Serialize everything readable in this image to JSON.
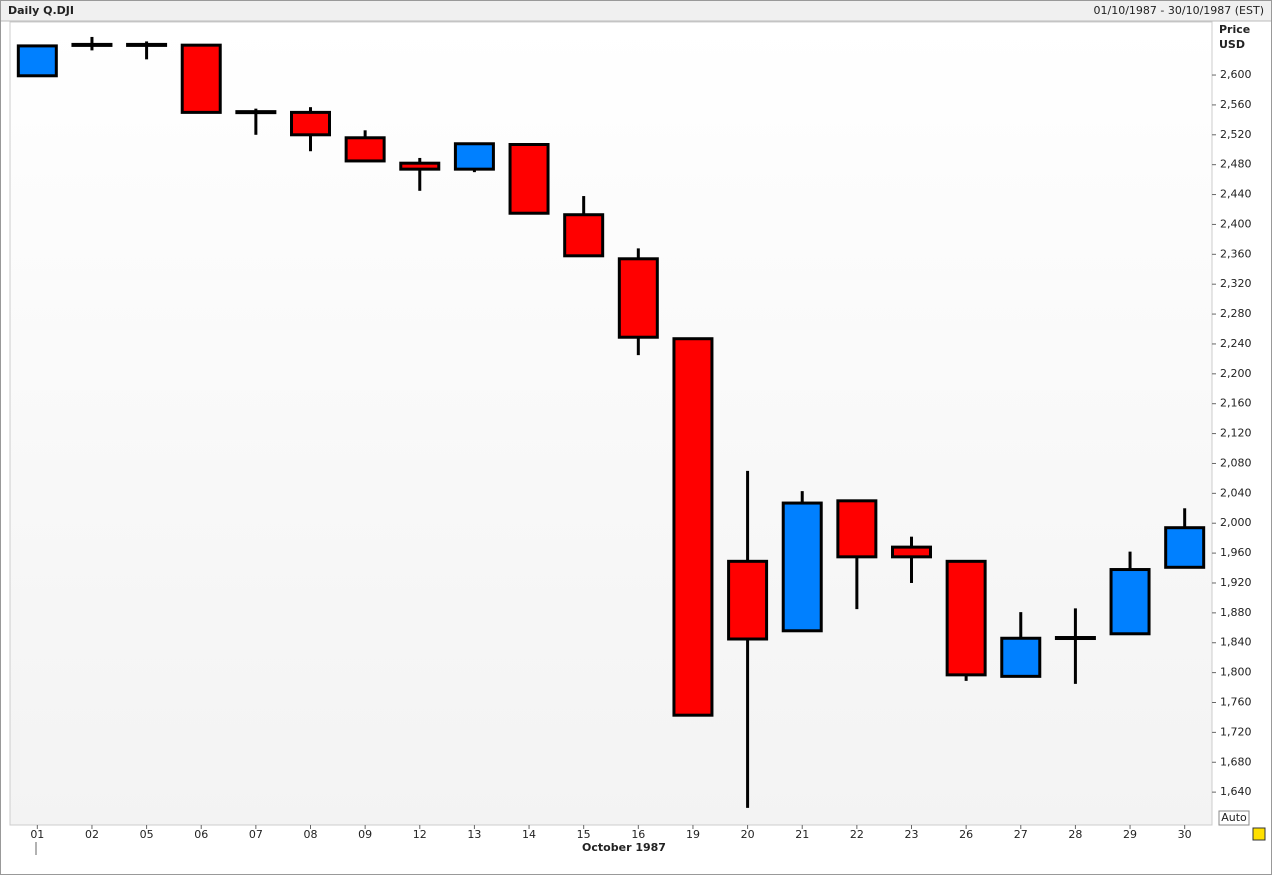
{
  "chart_data": {
    "type": "candlestick",
    "title": "Daily Q.DJI",
    "date_range": "01/10/1987 - 30/10/1987 (EST)",
    "y_axis_title": "Price",
    "y_axis_unit": "USD",
    "x_axis_label": "October 1987",
    "scale_mode": "Auto",
    "categories": [
      "01",
      "02",
      "05",
      "06",
      "07",
      "08",
      "09",
      "12",
      "13",
      "14",
      "15",
      "16",
      "19",
      "20",
      "21",
      "22",
      "23",
      "26",
      "27",
      "28",
      "29",
      "30"
    ],
    "open": [
      2599,
      2640,
      2641,
      2640,
      2550,
      2550,
      2516,
      2482,
      2474,
      2507,
      2413,
      2354,
      2247,
      1949,
      1856,
      2030,
      1968,
      1949,
      1795,
      1847,
      1852,
      1941
    ],
    "high": [
      2639,
      2651,
      2645,
      2640,
      2555,
      2557,
      2526,
      2489,
      2508,
      2507,
      2438,
      2368,
      2247,
      2070,
      2043,
      2030,
      1982,
      1949,
      1881,
      1886,
      1962,
      2020
    ],
    "low": [
      2599,
      2633,
      2621,
      2550,
      2520,
      2498,
      2485,
      2445,
      2470,
      2415,
      2358,
      2225,
      1743,
      1619,
      1856,
      1885,
      1920,
      1789,
      1795,
      1785,
      1852,
      1941
    ],
    "close": [
      2639,
      2641,
      2640,
      2550,
      2551,
      2520,
      2485,
      2474,
      2508,
      2415,
      2358,
      2249,
      1743,
      1845,
      2027,
      1955,
      1955,
      1797,
      1846,
      1846,
      1938,
      1994
    ],
    "up_color": "#0080ff",
    "down_color": "#ff0000",
    "ylim": [
      1596,
      2671
    ],
    "yticks": [
      {
        "value": 1640,
        "label": "1,640"
      },
      {
        "value": 1680,
        "label": "1,680"
      },
      {
        "value": 1720,
        "label": "1,720"
      },
      {
        "value": 1760,
        "label": "1,760"
      },
      {
        "value": 1800,
        "label": "1,800"
      },
      {
        "value": 1840,
        "label": "1,840"
      },
      {
        "value": 1880,
        "label": "1,880"
      },
      {
        "value": 1920,
        "label": "1,920"
      },
      {
        "value": 1960,
        "label": "1,960"
      },
      {
        "value": 2000,
        "label": "2,000"
      },
      {
        "value": 2040,
        "label": "2,040"
      },
      {
        "value": 2080,
        "label": "2,080"
      },
      {
        "value": 2120,
        "label": "2,120"
      },
      {
        "value": 2160,
        "label": "2,160"
      },
      {
        "value": 2200,
        "label": "2,200"
      },
      {
        "value": 2240,
        "label": "2,240"
      },
      {
        "value": 2280,
        "label": "2,280"
      },
      {
        "value": 2320,
        "label": "2,320"
      },
      {
        "value": 2360,
        "label": "2,360"
      },
      {
        "value": 2400,
        "label": "2,400"
      },
      {
        "value": 2440,
        "label": "2,440"
      },
      {
        "value": 2480,
        "label": "2,480"
      },
      {
        "value": 2520,
        "label": "2,520"
      },
      {
        "value": 2560,
        "label": "2,560"
      },
      {
        "value": 2600,
        "label": "2,600"
      }
    ]
  }
}
